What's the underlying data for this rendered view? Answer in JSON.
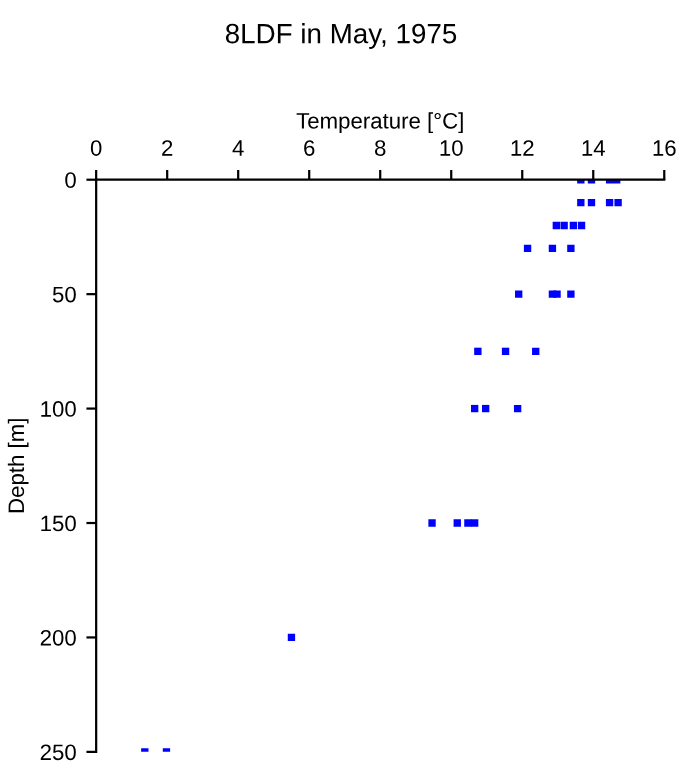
{
  "chart_data": {
    "type": "scatter",
    "title": "8LDF in May, 1975",
    "xlabel": "Temperature [°C]",
    "ylabel": "Depth [m]",
    "series": [
      {
        "color": "#0000ff",
        "x": [
          13.65,
          13.95,
          14.46,
          14.66,
          13.65,
          13.95,
          14.46,
          14.7,
          12.96,
          13.18,
          13.44,
          13.67,
          12.15,
          12.85,
          13.37,
          11.9,
          12.85,
          12.98,
          13.37,
          10.75,
          11.53,
          12.38,
          10.66,
          10.97,
          11.87,
          9.46,
          10.17,
          10.47,
          10.66,
          5.5,
          1.37,
          1.98
        ],
        "values": [
          0,
          0,
          0,
          0,
          10,
          10,
          10,
          10,
          20,
          20,
          20,
          20,
          30,
          30,
          30,
          50,
          50,
          50,
          50,
          75,
          75,
          75,
          100,
          100,
          100,
          150,
          150,
          150,
          150,
          200,
          250,
          250
        ]
      }
    ],
    "marker": "square",
    "xlim": [
      0,
      16
    ],
    "xticks": [
      0,
      2,
      4,
      6,
      8,
      10,
      12,
      14,
      16
    ],
    "ylim": [
      250,
      0
    ],
    "yticks": [
      0,
      50,
      100,
      150,
      200,
      250
    ],
    "grid": false,
    "legend": false
  }
}
